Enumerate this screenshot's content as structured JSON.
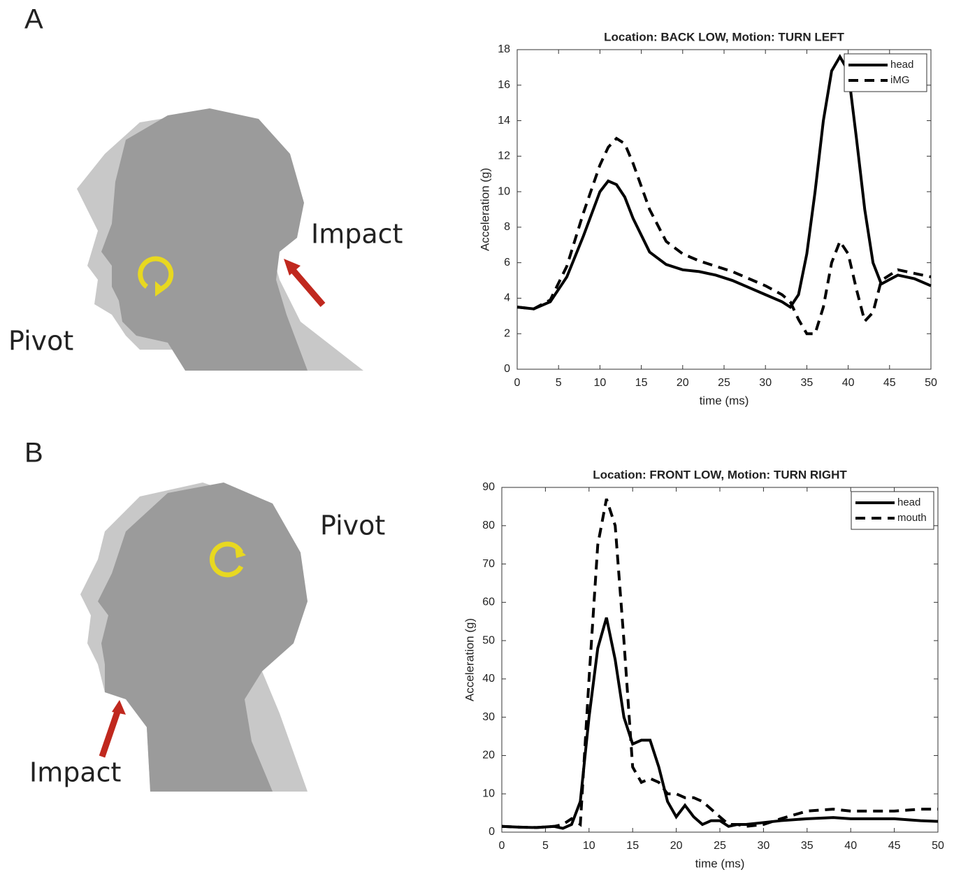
{
  "panels": [
    {
      "label": "A",
      "impact": "Impact",
      "pivot": "Pivot"
    },
    {
      "label": "B",
      "impact": "Impact",
      "pivot": "Pivot"
    }
  ],
  "chart_data": [
    {
      "type": "line",
      "title": "Location: BACK LOW, Motion: TURN LEFT",
      "x_label": "time (ms)",
      "y_label": "Acceleration (g)",
      "x": [
        0,
        2,
        4,
        6,
        8,
        10,
        11,
        12,
        13,
        14,
        16,
        18,
        20,
        22,
        24,
        26,
        28,
        30,
        32,
        33,
        34,
        35,
        36,
        37,
        38,
        39,
        40,
        41,
        42,
        43,
        44,
        46,
        48,
        50
      ],
      "series": [
        {
          "name": "head",
          "color": "#000000",
          "style": "solid",
          "values": [
            3.5,
            3.4,
            3.8,
            5.2,
            7.5,
            10.0,
            10.6,
            10.4,
            9.7,
            8.5,
            6.6,
            5.9,
            5.6,
            5.5,
            5.3,
            5.0,
            4.6,
            4.2,
            3.8,
            3.5,
            4.2,
            6.5,
            10,
            14,
            16.8,
            17.6,
            16.8,
            13,
            9,
            6,
            4.8,
            5.3,
            5.1,
            4.7
          ]
        },
        {
          "name": "iMG",
          "color": "#000000",
          "style": "dashed",
          "values": [
            3.5,
            3.4,
            3.9,
            5.8,
            8.8,
            11.5,
            12.5,
            13.0,
            12.7,
            11.6,
            9.0,
            7.2,
            6.5,
            6.1,
            5.8,
            5.5,
            5.1,
            4.7,
            4.2,
            3.8,
            2.8,
            2.0,
            2.0,
            3.5,
            6.0,
            7.2,
            6.5,
            4.5,
            2.7,
            3.2,
            5.0,
            5.6,
            5.4,
            5.2
          ]
        }
      ],
      "xlim": [
        0,
        50
      ],
      "xticks": [
        0,
        5,
        10,
        15,
        20,
        25,
        30,
        35,
        40,
        45,
        50
      ],
      "ylim": [
        0,
        18
      ],
      "yticks": [
        0,
        2,
        4,
        6,
        8,
        10,
        12,
        14,
        16,
        18
      ],
      "legend": "upper right"
    },
    {
      "type": "line",
      "title": "Location: FRONT LOW, Motion: TURN RIGHT",
      "x_label": "time (ms)",
      "y_label": "Acceleration (g)",
      "x": [
        0,
        2,
        4,
        6,
        7,
        8,
        9,
        10,
        11,
        12,
        13,
        14,
        15,
        16,
        17,
        18,
        19,
        20,
        21,
        22,
        23,
        24,
        25,
        26,
        27,
        28,
        30,
        32,
        35,
        38,
        40,
        45,
        48,
        50
      ],
      "series": [
        {
          "name": "head",
          "color": "#000000",
          "style": "solid",
          "values": [
            1.5,
            1.3,
            1.2,
            1.5,
            1.0,
            2,
            8,
            30,
            48,
            56,
            45,
            30,
            23,
            24,
            24,
            17,
            8,
            4,
            7,
            4,
            2,
            3,
            3,
            1.5,
            2,
            2,
            2.5,
            3,
            3.5,
            3.8,
            3.5,
            3.5,
            3,
            2.8
          ]
        },
        {
          "name": "mouth",
          "color": "#000000",
          "style": "dashed",
          "values": [
            1.5,
            1.3,
            1.2,
            1.5,
            2,
            3.5,
            2,
            40,
            75,
            87,
            80,
            50,
            17,
            13,
            14,
            13,
            10,
            10,
            9,
            9,
            8,
            6,
            4,
            2,
            2,
            1.5,
            2,
            3.5,
            5.5,
            6,
            5.5,
            5.5,
            6,
            6
          ]
        }
      ],
      "xlim": [
        0,
        50
      ],
      "xticks": [
        0,
        5,
        10,
        15,
        20,
        25,
        30,
        35,
        40,
        45,
        50
      ],
      "ylim": [
        0,
        90
      ],
      "yticks": [
        0,
        10,
        20,
        30,
        40,
        50,
        60,
        70,
        80,
        90
      ],
      "legend": "upper right"
    }
  ]
}
